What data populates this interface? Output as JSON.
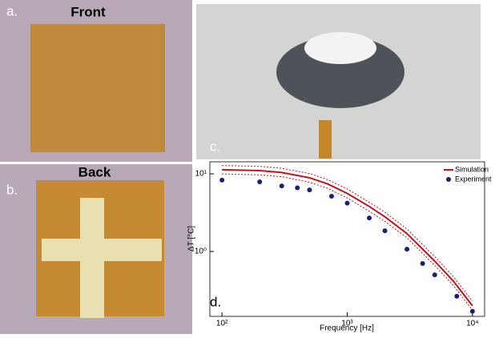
{
  "panels": {
    "a": {
      "label": "a.",
      "title": "Front"
    },
    "b": {
      "label": "b.",
      "title": "Back"
    },
    "c": {
      "label": "c."
    },
    "d": {
      "label": "d."
    }
  },
  "chart_data": {
    "type": "line",
    "x_label": "Frequency [Hz]",
    "y_label": "ΔT [°C]",
    "log_x": true,
    "log_y": true,
    "xlim": [
      80,
      12500
    ],
    "ylim": [
      0.146,
      14.3
    ],
    "xticks": [
      {
        "value": 100,
        "label": "10²"
      },
      {
        "value": 1000,
        "label": "10³"
      },
      {
        "value": 10000,
        "label": "10⁴"
      }
    ],
    "yticks": [
      {
        "value": 1,
        "label": "10⁰"
      },
      {
        "value": 10,
        "label": "10¹"
      }
    ],
    "legend": "upper right",
    "series": [
      {
        "name": "Simulation",
        "color": "#c0141e",
        "mode": "line",
        "x": [
          100,
          200,
          300,
          500,
          700,
          1000,
          1500,
          2000,
          3000,
          5000,
          7000,
          10000
        ],
        "values": [
          11.3,
          11,
          10.4,
          8.9,
          7.4,
          5.6,
          3.8,
          2.8,
          1.7,
          0.75,
          0.42,
          0.2
        ],
        "upper": [
          12.8,
          12.5,
          11.8,
          10.1,
          8.4,
          6.4,
          4.3,
          3.2,
          1.95,
          0.86,
          0.48,
          0.23
        ],
        "lower": [
          10,
          9.7,
          9.2,
          7.8,
          6.5,
          4.9,
          3.3,
          2.45,
          1.5,
          0.66,
          0.37,
          0.175
        ]
      },
      {
        "name": "Experiment",
        "color": "#1c1f7a",
        "mode": "markers",
        "x": [
          100,
          200,
          300,
          400,
          500,
          750,
          1000,
          1500,
          2000,
          3000,
          4000,
          5000,
          7500,
          10000
        ],
        "values": [
          8.3,
          7.9,
          7.0,
          6.6,
          6.2,
          5.15,
          4.2,
          2.7,
          1.85,
          1.07,
          0.7,
          0.5,
          0.265,
          0.17
        ]
      }
    ]
  }
}
